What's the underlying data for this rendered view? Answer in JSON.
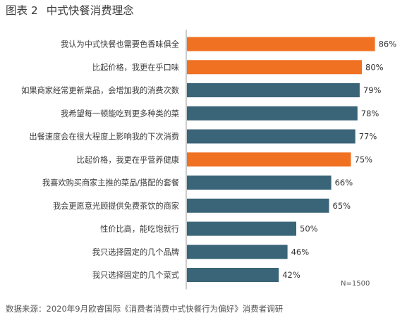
{
  "figure": {
    "number": "图表 2",
    "title": "中式快餐消费理念"
  },
  "chart_data": {
    "type": "bar",
    "orientation": "horizontal",
    "categories": [
      "我认为中式快餐也需要色香味俱全",
      "比起价格，我更在乎口味",
      "如果商家经常更新菜品，会增加我的消费次数",
      "我希望每一顿能吃到更多种类的菜",
      "出餐速度会在很大程度上影响我的下次消费",
      "比起价格，我更在乎营养健康",
      "我喜欢购买商家主推的菜品/搭配的套餐",
      "我会更愿意光顾提供免费茶饮的商家",
      "性价比高，能吃饱就行",
      "我只选择固定的几个品牌",
      "我只选择固定的几个菜式"
    ],
    "values": [
      86,
      80,
      79,
      78,
      77,
      75,
      66,
      65,
      50,
      46,
      42
    ],
    "value_labels": [
      "86%",
      "80%",
      "79%",
      "78%",
      "77%",
      "75%",
      "66%",
      "65%",
      "50%",
      "46%",
      "42%"
    ],
    "highlighted": [
      true,
      true,
      false,
      false,
      false,
      true,
      false,
      false,
      false,
      false,
      false
    ],
    "xlim": [
      0,
      100
    ],
    "colors": {
      "highlight": "#f07122",
      "default": "#3a6478",
      "axis": "#9a9a9a"
    },
    "note": "N=1500",
    "legend": "none",
    "grid": false
  },
  "source": "数据来源：2020年9月欧睿国际《消费者消费中式快餐行为偏好》消费者调研"
}
